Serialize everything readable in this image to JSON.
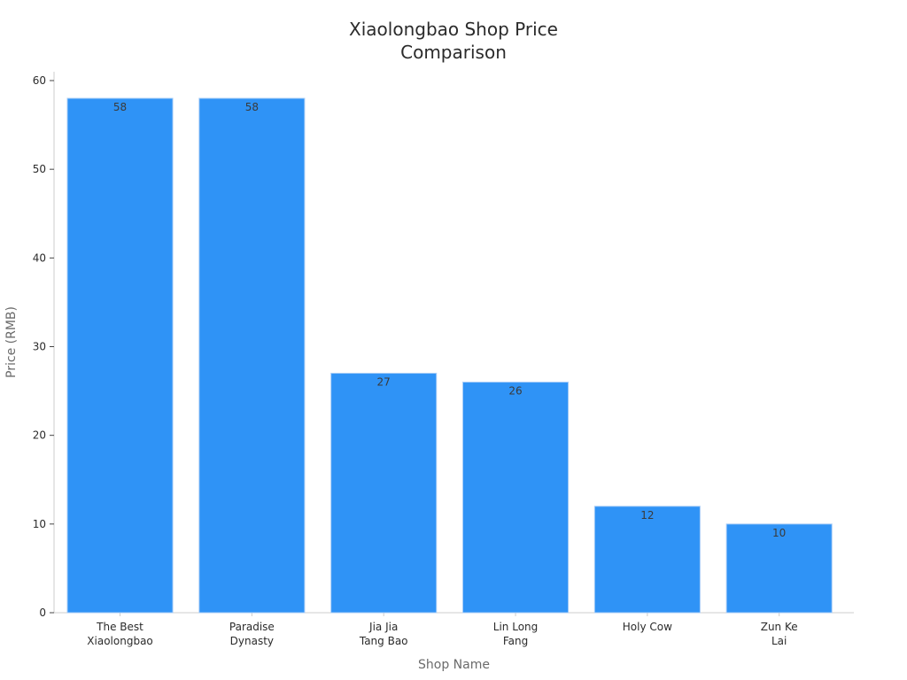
{
  "chart_data": {
    "type": "bar",
    "title": [
      "Xiaolongbao Shop Price",
      "Comparison"
    ],
    "xlabel": "Shop Name",
    "ylabel": "Price (RMB)",
    "categories": [
      [
        "The Best",
        "Xiaolongbao"
      ],
      [
        "Paradise",
        "Dynasty"
      ],
      [
        "Jia Jia",
        "Tang Bao"
      ],
      [
        "Lin Long",
        "Fang"
      ],
      [
        "Holy Cow"
      ],
      [
        "Zun Ke",
        "Lai"
      ]
    ],
    "values": [
      58,
      58,
      27,
      26,
      12,
      10
    ],
    "data_labels": [
      "58",
      "58",
      "27",
      "26",
      "12",
      "10"
    ],
    "ylim": [
      0,
      60
    ],
    "yticks": [
      0,
      10,
      20,
      30,
      40,
      50,
      60
    ],
    "grid": false,
    "colors": {
      "bar": "#2f93f6",
      "bar_edge": "#a9cdf7",
      "axis": "#cccccc",
      "text": "#2b2b2b",
      "axis_title": "#6b6b6b"
    }
  }
}
